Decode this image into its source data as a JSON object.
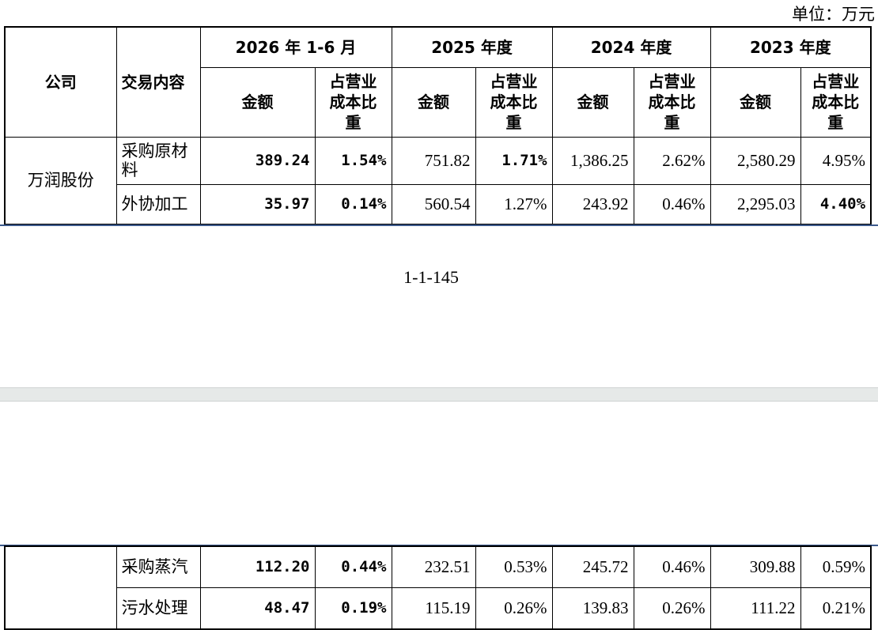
{
  "unit": "单位：万元",
  "header": {
    "company": "公司",
    "content": "交易内容",
    "periods": [
      {
        "label": "2026 年 1-6 月",
        "amount": "金额",
        "ratio": "占营业成本比重"
      },
      {
        "label": "2025 年度",
        "amount": "金额",
        "ratio": "占营业成本比重"
      },
      {
        "label": "2024 年度",
        "amount": "金额",
        "ratio": "占营业成本比重"
      },
      {
        "label": "2023 年度",
        "amount": "金额",
        "ratio": "占营业成本比重"
      }
    ]
  },
  "table": {
    "company": "万润股份",
    "rows": [
      {
        "content": "采购原材料",
        "cells": [
          "389.24",
          "1.54%",
          "751.82",
          "1.71%",
          "1,386.25",
          "2.62%",
          "2,580.29",
          "4.95%"
        ],
        "bold": [
          0,
          1,
          3
        ]
      },
      {
        "content": "外协加工",
        "cells": [
          "35.97",
          "0.14%",
          "560.54",
          "1.27%",
          "243.92",
          "0.46%",
          "2,295.03",
          "4.40%"
        ],
        "bold": [
          0,
          1,
          7
        ]
      }
    ]
  },
  "page_number": "1-1-145",
  "table2": {
    "rows": [
      {
        "content": "采购蒸汽",
        "cells": [
          "112.20",
          "0.44%",
          "232.51",
          "0.53%",
          "245.72",
          "0.46%",
          "309.88",
          "0.59%"
        ],
        "bold": [
          0,
          1
        ]
      },
      {
        "content": "污水处理",
        "cells": [
          "48.47",
          "0.19%",
          "115.19",
          "0.26%",
          "139.83",
          "0.26%",
          "111.22",
          "0.21%"
        ],
        "bold": [
          0,
          1
        ]
      }
    ]
  }
}
